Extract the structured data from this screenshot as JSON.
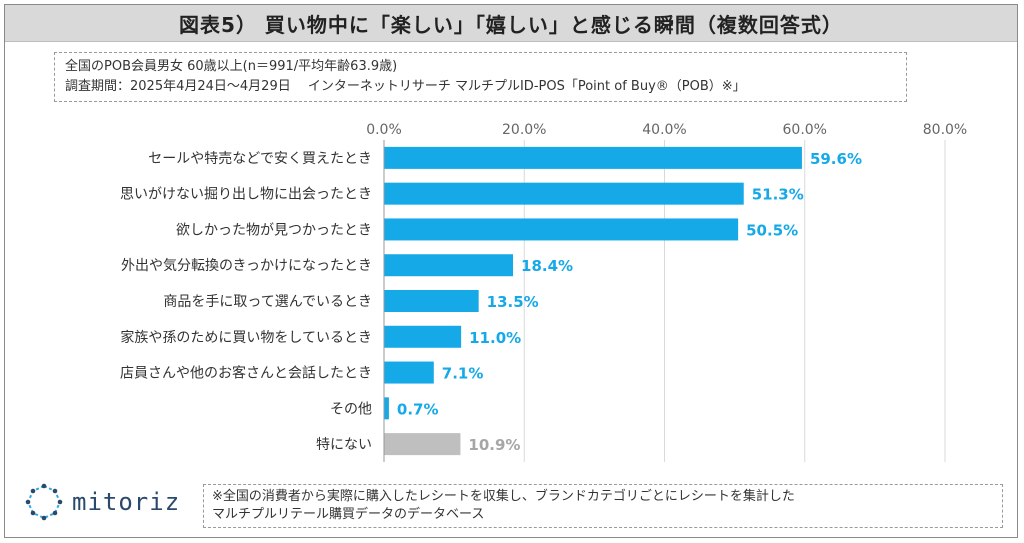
{
  "header": {
    "title": "図表5） 買い物中に「楽しい」「嬉しい」と感じる瞬間（複数回答式）"
  },
  "notes": {
    "line1": "全国のPOB会員男女 60歳以上(n＝991/平均年齢63.9歳)",
    "line2": "調査期間：2025年4月24日～4月29日　 インターネットリサーチ マルチプルID-POS「Point of Buy®（POB）※」"
  },
  "logo": {
    "text": "mitoriz",
    "icon": "network-burst-icon"
  },
  "footnote": {
    "line1": "※全国の消費者から実際に購入したレシートを収集し、ブランドカテゴリごとにレシートを集計した",
    "line2": "マルチプルリテール購買データのデータベース"
  },
  "colors": {
    "bar": "#16a9e8",
    "bar_muted": "#bfbfbf",
    "label": "#16a9e8",
    "label_muted": "#a6a6a6",
    "grid": "#d9d9d9"
  },
  "chart_data": {
    "type": "bar",
    "orientation": "horizontal",
    "title": "",
    "xlabel": "",
    "ylabel": "",
    "xlim": [
      0,
      80
    ],
    "ticks": [
      "0.0%",
      "20.0%",
      "40.0%",
      "60.0%",
      "80.0%"
    ],
    "tick_values": [
      0,
      20,
      40,
      60,
      80
    ],
    "grid": true,
    "categories": [
      "セールや特売などで安く買えたとき",
      "思いがけない掘り出し物に出会ったとき",
      "欲しかった物が見つかったとき",
      "外出や気分転換のきっかけになったとき",
      "商品を手に取って選んでいるとき",
      "家族や孫のために買い物をしているとき",
      "店員さんや他のお客さんと会話したとき",
      "その他",
      "特にない"
    ],
    "values": [
      59.6,
      51.3,
      50.5,
      18.4,
      13.5,
      11.0,
      7.1,
      0.7,
      10.9
    ],
    "value_labels": [
      "59.6%",
      "51.3%",
      "50.5%",
      "18.4%",
      "13.5%",
      "11.0%",
      "7.1%",
      "0.7%",
      "10.9%"
    ],
    "muted": [
      false,
      false,
      false,
      false,
      false,
      false,
      false,
      false,
      true
    ]
  }
}
